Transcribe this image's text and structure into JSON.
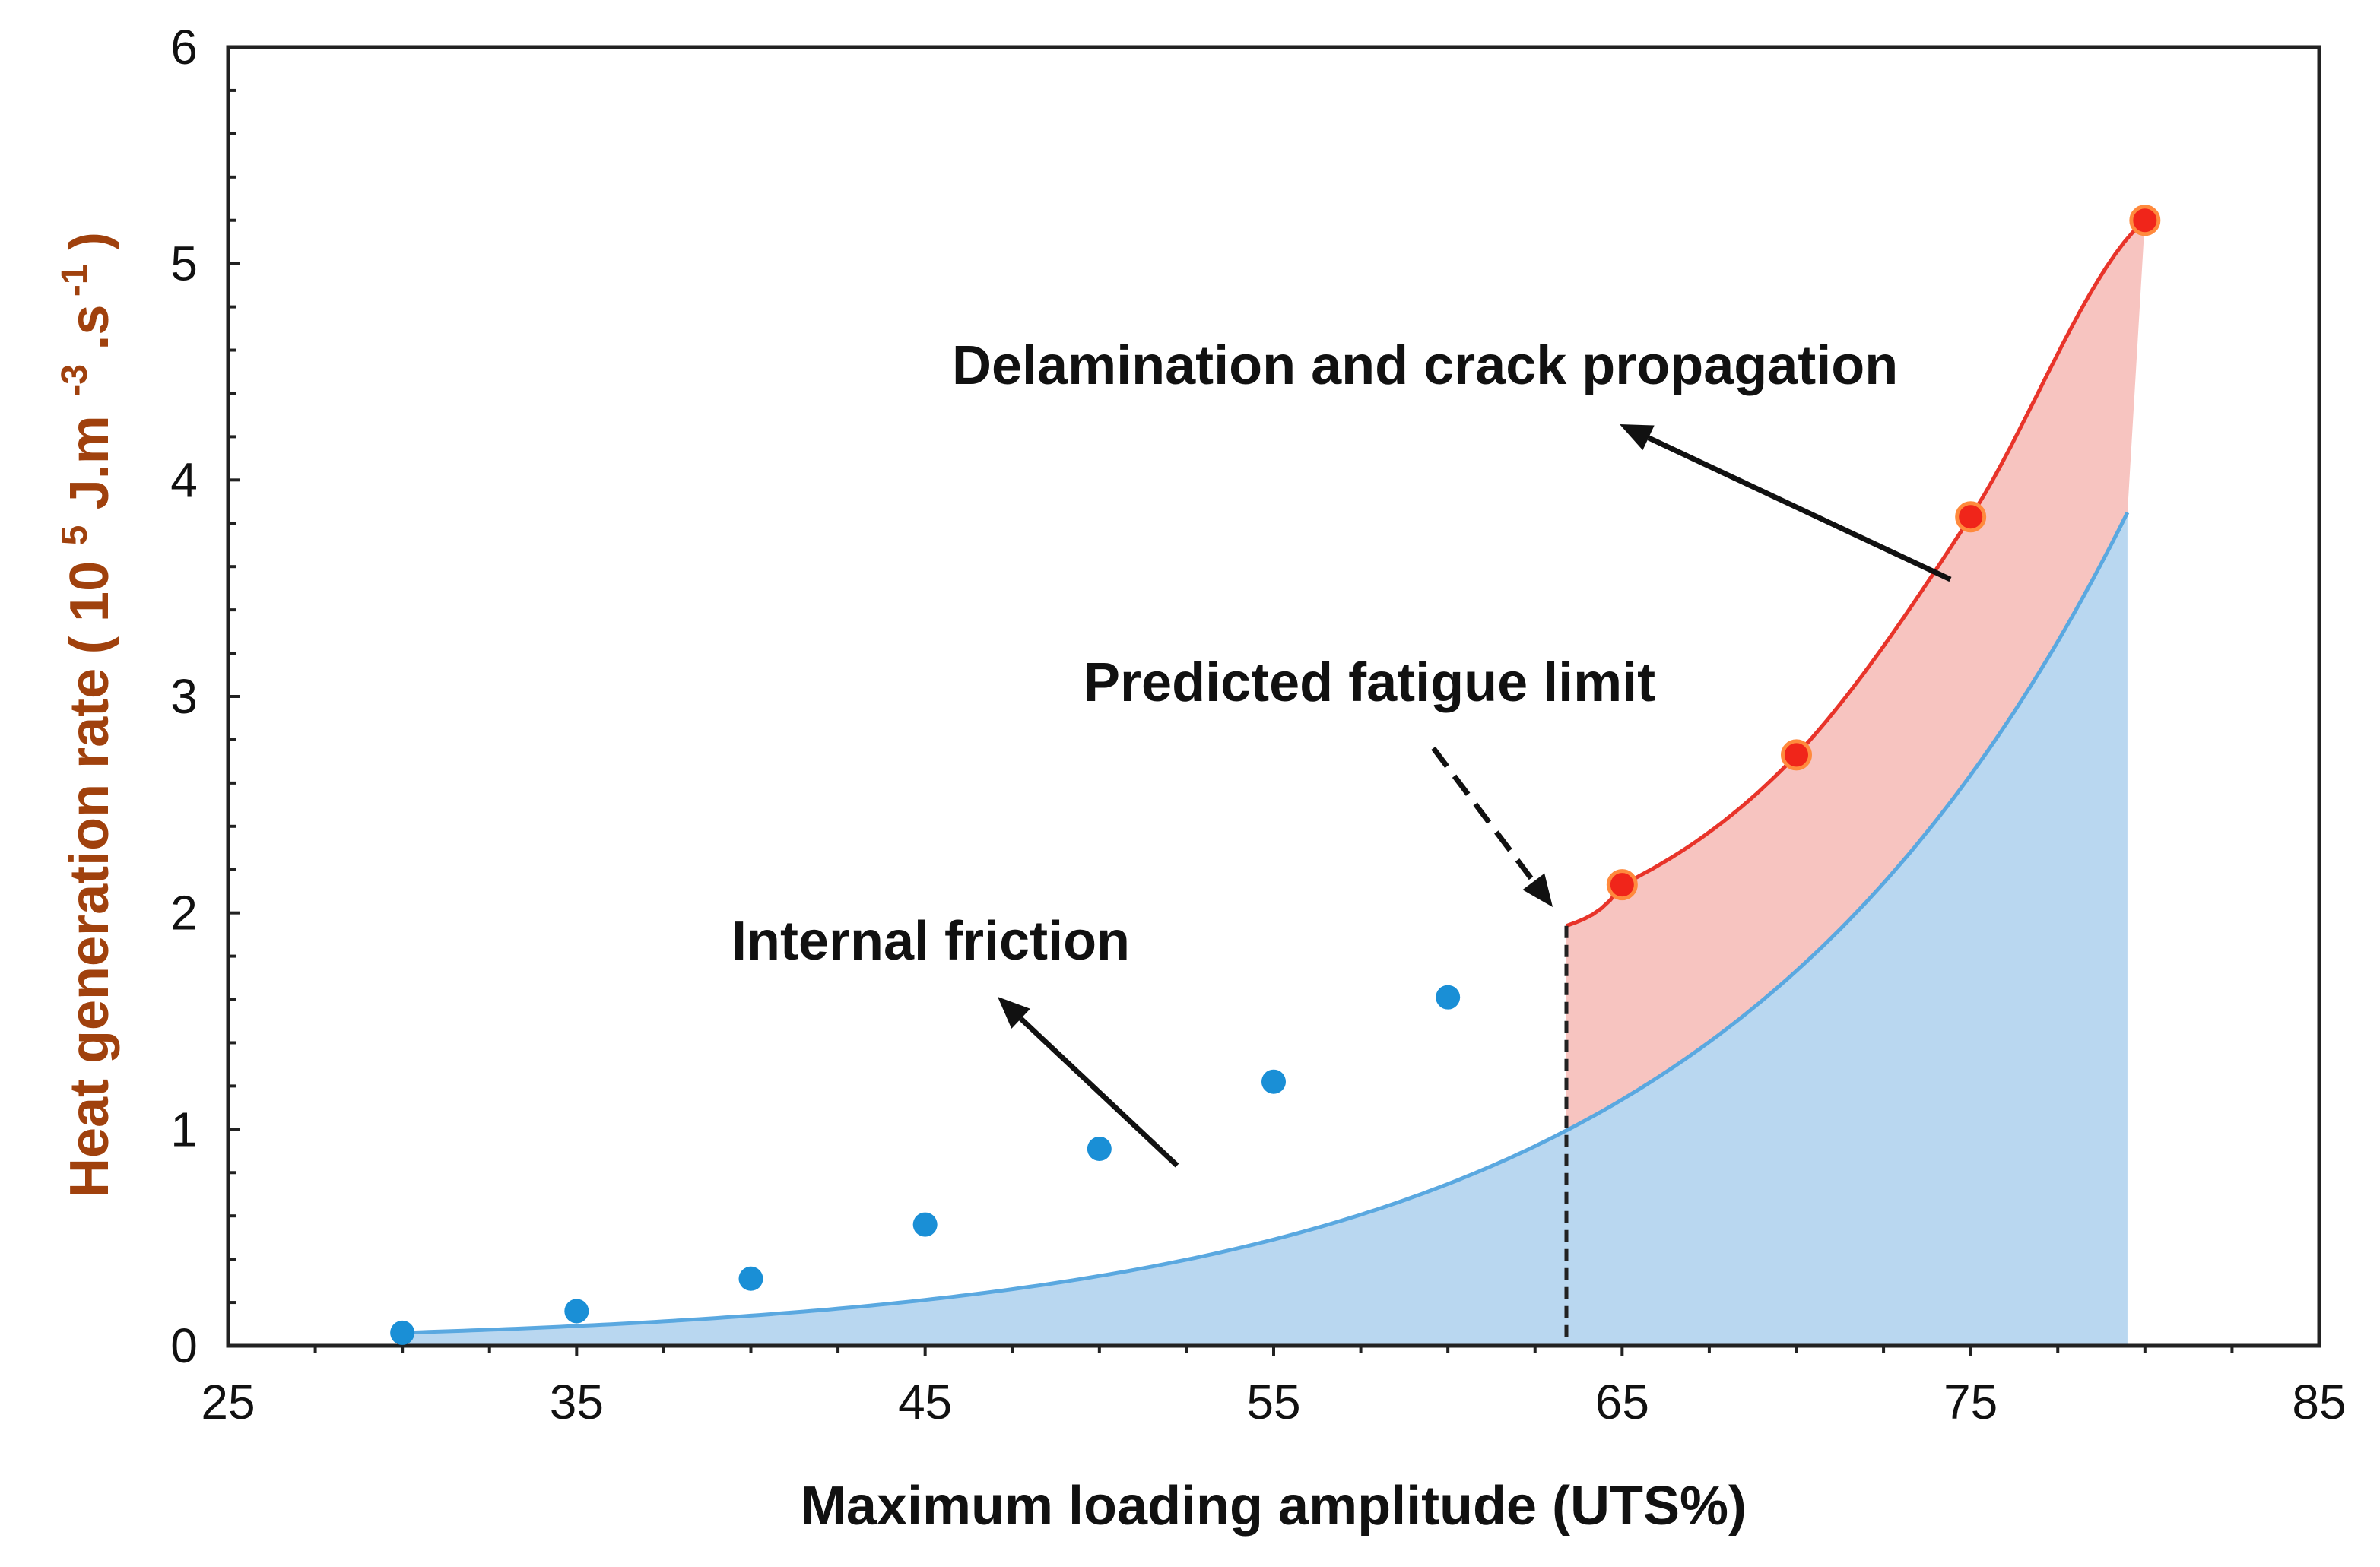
{
  "chart_data": {
    "type": "line",
    "title": "",
    "xlabel": "Maximum loading amplitude (UTS%)",
    "ylabel": {
      "prefix": "Heat generation rate",
      "paren_open": "(",
      "base": "10",
      "exp": "5",
      "unit1": "J.m",
      "exp2": "-3",
      "unit2": ".s",
      "exp3": "-1",
      "paren_close": ")"
    },
    "xlim": [
      25,
      85
    ],
    "ylim": [
      0,
      6
    ],
    "xticks": [
      25,
      35,
      45,
      55,
      65,
      75,
      85
    ],
    "yticks": [
      0,
      1,
      2,
      3,
      4,
      5,
      6
    ],
    "grid": false,
    "series": [
      {
        "color": "#1a8fd6",
        "x": [
          30,
          35,
          40,
          45,
          50,
          55,
          60
        ],
        "y": [
          0.06,
          0.16,
          0.31,
          0.56,
          0.91,
          1.22,
          1.61
        ]
      },
      {
        "color": "#f0251a",
        "x": [
          65,
          70,
          75,
          80
        ],
        "y": [
          2.13,
          2.73,
          3.83,
          5.2
        ]
      }
    ],
    "fit_curve": {
      "color": "#5aa8e0",
      "fill": "#b9d7f0",
      "x_range": [
        30,
        79.5
      ],
      "y_at_start": 0.06,
      "y_at_limit": 1.94,
      "y_at_end": 3.85
    },
    "damage_fill": {
      "color": "#f7c4c0",
      "line_color": "#e8342a"
    },
    "fatigue_limit_x": 63.4,
    "annotations": {
      "internal_friction": "Internal friction",
      "delamination": "Delamination and crack propagation",
      "fatigue_limit": "Predicted fatigue limit"
    }
  }
}
